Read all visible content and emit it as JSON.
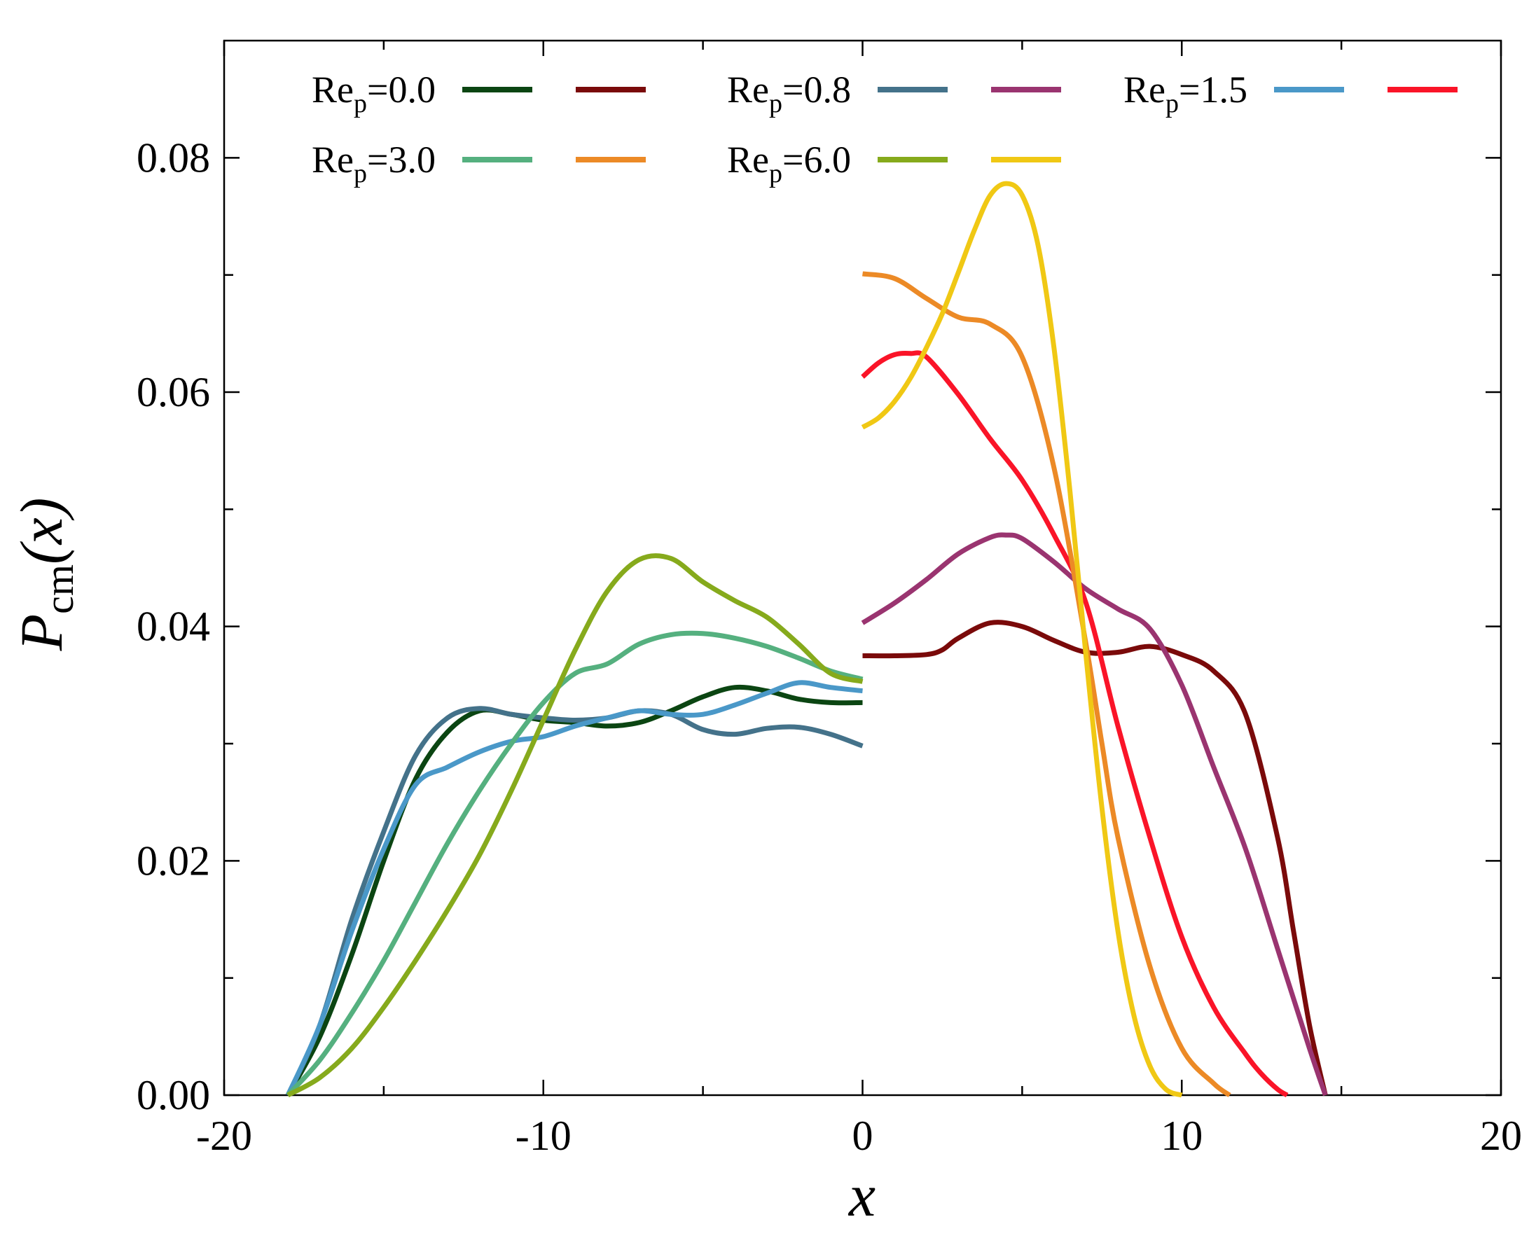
{
  "chart_data": {
    "type": "line",
    "title": "",
    "xlabel": "x",
    "ylabel": "P",
    "ylabel_subscript": "cm",
    "ylabel_suffix": "(x)",
    "xlim": [
      -20,
      20
    ],
    "ylim": [
      0,
      0.09
    ],
    "x_ticks": [
      -20,
      -10,
      0,
      10,
      20
    ],
    "x_tick_labels": [
      "-20",
      "-10",
      "0",
      "10",
      "20"
    ],
    "y_ticks": [
      0,
      0.02,
      0.04,
      0.06,
      0.08
    ],
    "y_tick_labels": [
      "0.00",
      "0.02",
      "0.04",
      "0.06",
      "0.08"
    ],
    "x_minor_ticks": [
      -15,
      -5,
      5,
      15
    ],
    "y_minor_ticks": [
      0.01,
      0.03,
      0.05,
      0.07
    ],
    "grid": false,
    "legend_position": "top",
    "legend": [
      {
        "prefix": "Re",
        "sub": "p",
        "suffix": "=0.0",
        "colors": [
          "#0b4512",
          "#7a0a0a"
        ]
      },
      {
        "prefix": "Re",
        "sub": "p",
        "suffix": "=0.8",
        "colors": [
          "#44728a",
          "#9a3470"
        ]
      },
      {
        "prefix": "Re",
        "sub": "p",
        "suffix": "=1.5",
        "colors": [
          "#4a98c8",
          "#fa1428"
        ]
      },
      {
        "prefix": "Re",
        "sub": "p",
        "suffix": "=3.0",
        "colors": [
          "#55b07f",
          "#ec8a26"
        ]
      },
      {
        "prefix": "Re",
        "sub": "p",
        "suffix": "=6.0",
        "colors": [
          "#86aa1c",
          "#f0c814"
        ]
      }
    ],
    "series": [
      {
        "name": "Re_p=0.0 left",
        "color": "#0b4512",
        "x": [
          -18,
          -17,
          -16,
          -15,
          -14,
          -13,
          -12,
          -11,
          -10,
          -9,
          -8,
          -7,
          -6,
          -5,
          -4,
          -3,
          -2,
          -1,
          0
        ],
        "y": [
          0,
          0.005,
          0.012,
          0.02,
          0.027,
          0.031,
          0.0328,
          0.0325,
          0.032,
          0.0318,
          0.0315,
          0.0318,
          0.0328,
          0.034,
          0.0348,
          0.0345,
          0.0338,
          0.0335,
          0.0335
        ]
      },
      {
        "name": "Re_p=0.0 right",
        "color": "#7a0a0a",
        "x": [
          0,
          1,
          2,
          2.5,
          3,
          4,
          5,
          6,
          7,
          8,
          9,
          10,
          11,
          12,
          13,
          13.5,
          14,
          14.5
        ],
        "y": [
          0.0375,
          0.0375,
          0.0376,
          0.038,
          0.039,
          0.0403,
          0.04,
          0.0388,
          0.0378,
          0.0378,
          0.0383,
          0.0376,
          0.0362,
          0.0325,
          0.022,
          0.014,
          0.006,
          0
        ]
      },
      {
        "name": "Re_p=0.8 left",
        "color": "#44728a",
        "x": [
          -18,
          -17,
          -16,
          -15,
          -14,
          -13,
          -12,
          -11,
          -10,
          -9,
          -8,
          -7,
          -6,
          -5,
          -4,
          -3,
          -2,
          -1,
          0
        ],
        "y": [
          0,
          0.006,
          0.015,
          0.0225,
          0.029,
          0.0322,
          0.033,
          0.0325,
          0.0322,
          0.032,
          0.0322,
          0.0328,
          0.0325,
          0.0312,
          0.0308,
          0.0313,
          0.0314,
          0.0308,
          0.0298
        ]
      },
      {
        "name": "Re_p=0.8 right",
        "color": "#9a3470",
        "x": [
          0,
          1,
          2,
          3,
          4,
          4.5,
          5,
          6,
          7,
          8,
          9,
          10,
          11,
          12,
          13,
          14,
          14.5
        ],
        "y": [
          0.0403,
          0.042,
          0.044,
          0.0462,
          0.0476,
          0.0478,
          0.0475,
          0.0455,
          0.0432,
          0.0415,
          0.0398,
          0.035,
          0.028,
          0.021,
          0.0125,
          0.004,
          0
        ]
      },
      {
        "name": "Re_p=1.5 left",
        "color": "#4a98c8",
        "x": [
          -18,
          -17,
          -16,
          -15,
          -14,
          -13,
          -12,
          -11,
          -10,
          -9,
          -8,
          -7,
          -6,
          -5,
          -4,
          -3,
          -2,
          -1,
          0
        ],
        "y": [
          0,
          0.006,
          0.014,
          0.021,
          0.0265,
          0.028,
          0.0293,
          0.0302,
          0.0306,
          0.0315,
          0.0322,
          0.0328,
          0.0325,
          0.0325,
          0.0333,
          0.0343,
          0.0352,
          0.0348,
          0.0345
        ]
      },
      {
        "name": "Re_p=1.5 right",
        "color": "#fa1428",
        "x": [
          0,
          0.5,
          1,
          1.5,
          2,
          3,
          4,
          5,
          6,
          7,
          8,
          9,
          10,
          11,
          12,
          12.5,
          13,
          13.3
        ],
        "y": [
          0.0613,
          0.0625,
          0.0632,
          0.0633,
          0.063,
          0.0598,
          0.056,
          0.0525,
          0.0478,
          0.042,
          0.0315,
          0.022,
          0.0135,
          0.0075,
          0.0035,
          0.0018,
          0.0005,
          0
        ]
      },
      {
        "name": "Re_p=3.0 left",
        "color": "#55b07f",
        "x": [
          -18,
          -17,
          -16,
          -15,
          -14,
          -13,
          -12,
          -11,
          -10,
          -9,
          -8,
          -7,
          -6,
          -5,
          -4,
          -3,
          -2,
          -1,
          0
        ],
        "y": [
          0,
          0.003,
          0.007,
          0.0115,
          0.0165,
          0.0215,
          0.026,
          0.03,
          0.0335,
          0.036,
          0.0368,
          0.0385,
          0.0393,
          0.0394,
          0.039,
          0.0383,
          0.0373,
          0.0362,
          0.0355
        ]
      },
      {
        "name": "Re_p=3.0 right",
        "color": "#ec8a26",
        "x": [
          0,
          1,
          2,
          3,
          4,
          5,
          6,
          7,
          7.5,
          8,
          9,
          10,
          11,
          11.5
        ],
        "y": [
          0.0701,
          0.0697,
          0.068,
          0.0664,
          0.0658,
          0.063,
          0.0535,
          0.0385,
          0.03,
          0.022,
          0.011,
          0.004,
          0.001,
          0
        ]
      },
      {
        "name": "Re_p=6.0 left",
        "color": "#86aa1c",
        "x": [
          -18,
          -17,
          -16,
          -15,
          -14,
          -13,
          -12,
          -11,
          -10,
          -9,
          -8,
          -7,
          -6,
          -5,
          -4,
          -3,
          -2,
          -1,
          0
        ],
        "y": [
          0,
          0.0015,
          0.004,
          0.0075,
          0.0115,
          0.0158,
          0.0205,
          0.026,
          0.032,
          0.038,
          0.043,
          0.0457,
          0.0458,
          0.0438,
          0.0422,
          0.0408,
          0.0385,
          0.036,
          0.0353
        ]
      },
      {
        "name": "Re_p=6.0 right",
        "color": "#f0c814",
        "x": [
          0,
          0.5,
          1,
          1.5,
          2,
          2.5,
          3,
          3.5,
          4,
          4.5,
          5,
          5.5,
          6,
          6.5,
          7,
          7.5,
          8,
          8.5,
          9,
          9.5,
          10
        ],
        "y": [
          0.057,
          0.0578,
          0.0592,
          0.0612,
          0.0638,
          0.0667,
          0.0702,
          0.0738,
          0.0768,
          0.0778,
          0.0768,
          0.0725,
          0.0637,
          0.0515,
          0.0375,
          0.0245,
          0.014,
          0.0068,
          0.0025,
          0.0005,
          0
        ]
      }
    ]
  }
}
